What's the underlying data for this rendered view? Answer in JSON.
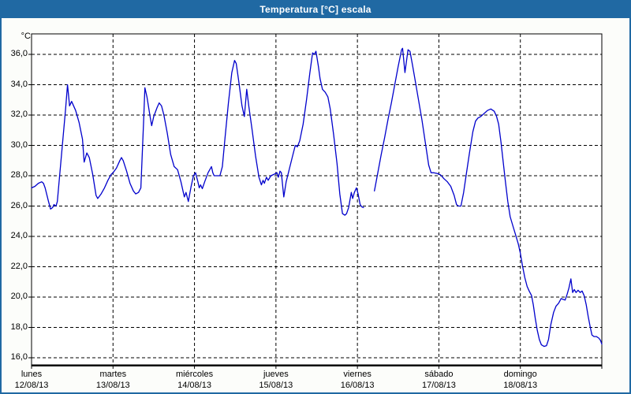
{
  "window": {
    "title": "Temperatura [°C] escala"
  },
  "colors": {
    "title_bar": "#2069a3",
    "outer_border": "#2069a3",
    "plot_background": "#ffffff",
    "grid": "#000000",
    "series_line": "#0000cc",
    "title_text": "#ffffff"
  },
  "chart_data": {
    "type": "line",
    "title": "Temperatura [°C] escala",
    "legend": "none",
    "grid": "dashed",
    "y_axis": {
      "unit": "°C",
      "tick_labels": [
        "36,0",
        "34,0",
        "32,0",
        "30,0",
        "28,0",
        "26,0",
        "24,0",
        "22,0",
        "20,0",
        "18,0",
        "16,0"
      ],
      "tick_values": [
        36,
        34,
        32,
        30,
        28,
        26,
        24,
        22,
        20,
        18,
        16
      ],
      "range_shown": [
        16,
        36
      ]
    },
    "x_axis": {
      "hours_range": [
        0,
        168
      ],
      "days": [
        {
          "name": "lunes",
          "date": "12/08/13"
        },
        {
          "name": "martes",
          "date": "13/08/13"
        },
        {
          "name": "miércoles",
          "date": "14/08/13"
        },
        {
          "name": "jueves",
          "date": "15/08/13"
        },
        {
          "name": "viernes",
          "date": "16/08/13"
        },
        {
          "name": "sábado",
          "date": "17/08/13"
        },
        {
          "name": "domingo",
          "date": "18/08/13"
        }
      ]
    },
    "series": [
      {
        "name": "temperatura",
        "color": "#0000cc",
        "note": "t = hours since lunes 00:00; gap (missing data) between t=97.8 and t=101",
        "segments": [
          [
            [
              0,
              27.2
            ],
            [
              1,
              27.3
            ],
            [
              2,
              27.5
            ],
            [
              3,
              27.6
            ],
            [
              3.5,
              27.5
            ],
            [
              4,
              27.2
            ],
            [
              5,
              26.3
            ],
            [
              5.6,
              25.8
            ],
            [
              6.2,
              25.9
            ],
            [
              6.6,
              26.1
            ],
            [
              7.2,
              26.0
            ],
            [
              7.6,
              26.3
            ],
            [
              8,
              27.3
            ],
            [
              9,
              29.8
            ],
            [
              10,
              32.3
            ],
            [
              10.6,
              34.0
            ],
            [
              11.2,
              32.6
            ],
            [
              11.8,
              32.9
            ],
            [
              13,
              32.3
            ],
            [
              14,
              31.5
            ],
            [
              15,
              30.4
            ],
            [
              15.5,
              28.9
            ],
            [
              16.3,
              29.5
            ],
            [
              17,
              29.2
            ],
            [
              18,
              28.1
            ],
            [
              19,
              26.7
            ],
            [
              19.5,
              26.5
            ],
            [
              20.5,
              26.8
            ],
            [
              21.5,
              27.2
            ],
            [
              22.5,
              27.7
            ],
            [
              23.5,
              28.1
            ],
            [
              24,
              28.2
            ],
            [
              25,
              28.5
            ],
            [
              26,
              29.0
            ],
            [
              26.5,
              29.2
            ],
            [
              27,
              29.0
            ],
            [
              28,
              28.3
            ],
            [
              29,
              27.5
            ],
            [
              30,
              27.0
            ],
            [
              30.7,
              26.8
            ],
            [
              31.5,
              26.9
            ],
            [
              32.2,
              27.2
            ],
            [
              33,
              31.5
            ],
            [
              33.4,
              33.8
            ],
            [
              34,
              33.2
            ],
            [
              35,
              31.8
            ],
            [
              35.4,
              31.3
            ],
            [
              36,
              31.9
            ],
            [
              37,
              32.5
            ],
            [
              37.6,
              32.8
            ],
            [
              38.3,
              32.6
            ],
            [
              39,
              32.0
            ],
            [
              40,
              30.8
            ],
            [
              41,
              29.4
            ],
            [
              42,
              28.6
            ],
            [
              43,
              28.4
            ],
            [
              44,
              27.6
            ],
            [
              45,
              26.6
            ],
            [
              45.5,
              26.9
            ],
            [
              46.2,
              26.3
            ],
            [
              47,
              27.3
            ],
            [
              47.7,
              28.0
            ],
            [
              48.3,
              28.2
            ],
            [
              49,
              27.6
            ],
            [
              49.4,
              27.2
            ],
            [
              49.8,
              27.4
            ],
            [
              50.3,
              27.15
            ],
            [
              51,
              27.6
            ],
            [
              52,
              28.2
            ],
            [
              53,
              28.6
            ],
            [
              53.4,
              28.2
            ],
            [
              53.8,
              28.0
            ],
            [
              55.5,
              28.0
            ],
            [
              56.2,
              28.6
            ],
            [
              57,
              30.5
            ],
            [
              58,
              32.8
            ],
            [
              59,
              34.8
            ],
            [
              59.8,
              35.6
            ],
            [
              60.3,
              35.4
            ],
            [
              61,
              34.3
            ],
            [
              62,
              32.6
            ],
            [
              62.7,
              31.9
            ],
            [
              63.4,
              33.7
            ],
            [
              64,
              32.6
            ],
            [
              65,
              31.0
            ],
            [
              66,
              29.3
            ],
            [
              67,
              27.9
            ],
            [
              67.7,
              27.4
            ],
            [
              68.2,
              27.7
            ],
            [
              68.6,
              27.5
            ],
            [
              69.2,
              27.9
            ],
            [
              69.7,
              27.7
            ],
            [
              70.5,
              28.0
            ],
            [
              71.5,
              28.1
            ],
            [
              72.3,
              28.2
            ],
            [
              72.7,
              27.9
            ],
            [
              73.2,
              28.3
            ],
            [
              73.6,
              28.2
            ],
            [
              74.3,
              26.6
            ],
            [
              75,
              27.6
            ],
            [
              76,
              28.5
            ],
            [
              77,
              29.4
            ],
            [
              77.7,
              30.0
            ],
            [
              78.3,
              29.9
            ],
            [
              79,
              30.3
            ],
            [
              80,
              31.4
            ],
            [
              81,
              33.0
            ],
            [
              82,
              34.8
            ],
            [
              82.8,
              36.1
            ],
            [
              83.3,
              36.0
            ],
            [
              83.8,
              36.2
            ],
            [
              84.5,
              35.2
            ],
            [
              85,
              34.4
            ],
            [
              85.7,
              33.7
            ],
            [
              86.5,
              33.5
            ],
            [
              87.3,
              33.2
            ],
            [
              88,
              32.4
            ],
            [
              89,
              30.7
            ],
            [
              90,
              28.8
            ],
            [
              90.8,
              26.8
            ],
            [
              91.6,
              25.5
            ],
            [
              92.3,
              25.4
            ],
            [
              92.8,
              25.5
            ],
            [
              93.4,
              25.9
            ],
            [
              94.2,
              26.9
            ],
            [
              94.6,
              26.5
            ],
            [
              95.1,
              26.9
            ],
            [
              95.7,
              27.2
            ],
            [
              96.2,
              26.8
            ],
            [
              96.8,
              26.1
            ],
            [
              97.3,
              25.95
            ],
            [
              97.8,
              25.9
            ]
          ],
          [
            [
              101,
              27.0
            ],
            [
              102,
              28.2
            ],
            [
              103,
              29.4
            ],
            [
              104,
              30.5
            ],
            [
              105,
              31.7
            ],
            [
              106,
              32.8
            ],
            [
              107,
              34.0
            ],
            [
              108,
              35.2
            ],
            [
              109,
              36.3
            ],
            [
              109.3,
              36.4
            ],
            [
              110,
              34.8
            ],
            [
              110.9,
              36.3
            ],
            [
              111.5,
              36.2
            ],
            [
              112.3,
              35.2
            ],
            [
              113,
              34.3
            ],
            [
              114,
              33.0
            ],
            [
              115,
              31.7
            ],
            [
              116,
              30.2
            ],
            [
              117,
              28.7
            ],
            [
              117.7,
              28.2
            ],
            [
              118.5,
              28.2
            ],
            [
              119.5,
              28.15
            ],
            [
              120.5,
              28.05
            ],
            [
              121.5,
              27.8
            ],
            [
              122.5,
              27.6
            ],
            [
              123.5,
              27.3
            ],
            [
              124.5,
              26.7
            ],
            [
              125.2,
              26.1
            ],
            [
              125.8,
              26.0
            ],
            [
              126.5,
              26.0
            ],
            [
              127.3,
              26.9
            ],
            [
              128,
              28.0
            ],
            [
              129,
              29.5
            ],
            [
              130,
              30.9
            ],
            [
              130.8,
              31.6
            ],
            [
              131.5,
              31.8
            ],
            [
              132.3,
              31.9
            ],
            [
              133.3,
              32.1
            ],
            [
              134.3,
              32.3
            ],
            [
              135.3,
              32.4
            ],
            [
              136.3,
              32.25
            ],
            [
              137,
              31.9
            ],
            [
              137.6,
              31.4
            ],
            [
              138.3,
              30.2
            ],
            [
              139,
              28.8
            ],
            [
              139.6,
              27.6
            ],
            [
              140.3,
              26.3
            ],
            [
              141,
              25.3
            ],
            [
              141.8,
              24.7
            ],
            [
              142.6,
              24.1
            ],
            [
              143.4,
              23.5
            ],
            [
              144,
              22.9
            ],
            [
              144.6,
              22.1
            ],
            [
              145.3,
              21.3
            ],
            [
              146,
              20.7
            ],
            [
              146.6,
              20.4
            ],
            [
              147.3,
              20.1
            ],
            [
              147.8,
              19.5
            ],
            [
              148.4,
              18.6
            ],
            [
              149,
              17.8
            ],
            [
              149.6,
              17.2
            ],
            [
              150.2,
              16.85
            ],
            [
              151,
              16.75
            ],
            [
              151.7,
              16.8
            ],
            [
              152.3,
              17.2
            ],
            [
              153,
              18.2
            ],
            [
              153.8,
              19.0
            ],
            [
              154.5,
              19.4
            ],
            [
              155.3,
              19.6
            ],
            [
              156,
              19.9
            ],
            [
              156.6,
              19.85
            ],
            [
              157.2,
              19.8
            ],
            [
              157.8,
              20.2
            ],
            [
              158.3,
              20.6
            ],
            [
              158.9,
              21.2
            ],
            [
              159.4,
              20.3
            ],
            [
              159.9,
              20.5
            ],
            [
              160.4,
              20.3
            ],
            [
              161,
              20.45
            ],
            [
              161.6,
              20.3
            ],
            [
              162.2,
              20.4
            ],
            [
              162.8,
              20.1
            ],
            [
              163.4,
              19.5
            ],
            [
              164,
              18.7
            ],
            [
              164.6,
              18.0
            ],
            [
              165.1,
              17.5
            ],
            [
              165.7,
              17.4
            ],
            [
              166.4,
              17.4
            ],
            [
              167.1,
              17.3
            ],
            [
              167.6,
              17.15
            ],
            [
              168,
              16.9
            ]
          ]
        ]
      }
    ]
  }
}
